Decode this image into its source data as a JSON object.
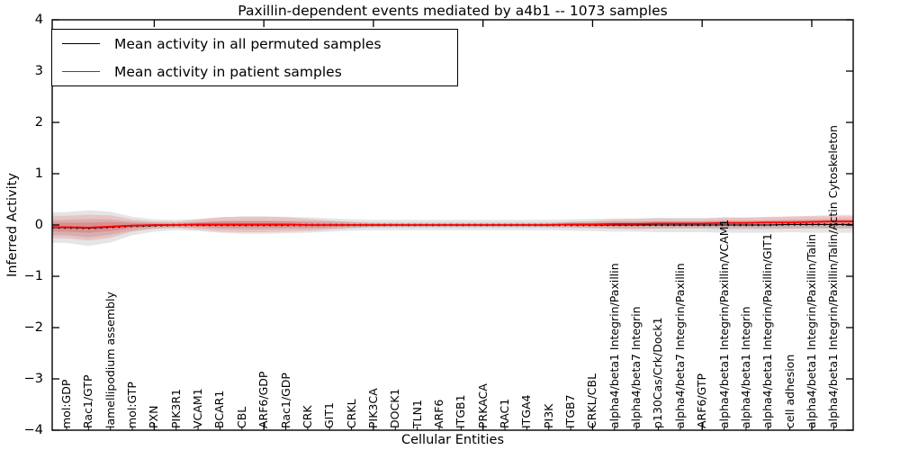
{
  "figure": {
    "background": "#ffffff",
    "accent_black": "#000000",
    "accent_red": "#ff0000"
  },
  "chart_data": {
    "type": "line",
    "title": "Paxillin-dependent events mediated by a4b1 -- 1073 samples",
    "xlabel": "Cellular Entities",
    "ylabel": "Inferred Activity",
    "ylim": [
      -4,
      4
    ],
    "grid": false,
    "legend_position": "upper left",
    "yticks": [
      -4,
      -3,
      -2,
      -1,
      0,
      1,
      2,
      3,
      4
    ],
    "ytick_labels": [
      "−4",
      "−3",
      "−2",
      "−1",
      "0",
      "1",
      "2",
      "3",
      "4"
    ],
    "x_major_tick_indices": [
      4,
      9,
      14,
      19,
      24,
      29,
      34
    ],
    "categories": [
      "mol:GDP",
      "Rac1/GTP",
      "lamellipodium assembly",
      "mol:GTP",
      "PXN",
      "PIK3R1",
      "VCAM1",
      "BCAR1",
      "CBL",
      "ARF6/GDP",
      "Rac1/GDP",
      "CRK",
      "GIT1",
      "CRKL",
      "PIK3CA",
      "DOCK1",
      "TLN1",
      "ARF6",
      "ITGB1",
      "PRKACA",
      "RAC1",
      "ITGA4",
      "PI3K",
      "ITGB7",
      "CRKL/CBL",
      "alpha4/beta1 Integrin/Paxillin",
      "alpha4/beta7 Integrin",
      "p130Cas/Crk/Dock1",
      "alpha4/beta7 Integrin/Paxillin",
      "ARF6/GTP",
      "alpha4/beta1 Integrin/Paxillin/VCAM1",
      "alpha4/beta1 Integrin",
      "alpha4/beta1 Integrin/Paxillin/GIT1",
      "cell adhesion",
      "alpha4/beta1 Integrin/Paxillin/Talin",
      "alpha4/beta1 Integrin/Paxillin/Talin/Actin Cytoskeleton"
    ],
    "series": [
      {
        "name": "Mean activity in all permuted samples",
        "color": "#000000",
        "line_style": "solid-with-dotted-markers",
        "values": [
          -0.05,
          -0.06,
          -0.04,
          -0.02,
          -0.01,
          0,
          0,
          0,
          0,
          0,
          0,
          0,
          0,
          0,
          0,
          0,
          0,
          0,
          0,
          0,
          0,
          0,
          0,
          0,
          0,
          0,
          0,
          0,
          0,
          0,
          0,
          0,
          0,
          0.01,
          0.01,
          0.01
        ]
      },
      {
        "name": "Mean activity in patient samples",
        "color": "#ff0000",
        "line_style": "solid",
        "values": [
          -0.04,
          -0.05,
          -0.03,
          -0.01,
          0,
          0,
          0.01,
          0.01,
          0.01,
          0.01,
          0.01,
          0,
          0,
          0,
          0,
          0,
          0,
          0,
          0,
          0,
          0,
          0,
          0,
          0.01,
          0.01,
          0.02,
          0.02,
          0.03,
          0.03,
          0.03,
          0.04,
          0.04,
          0.05,
          0.05,
          0.06,
          0.07
        ]
      }
    ],
    "bands": [
      {
        "name": "permuted-spread-outer",
        "series": 0,
        "color": "#000000",
        "opacity": 0.1,
        "half_width": [
          0.3,
          0.35,
          0.3,
          0.18,
          0.12,
          0.1,
          0.12,
          0.15,
          0.17,
          0.17,
          0.16,
          0.15,
          0.13,
          0.11,
          0.1,
          0.1,
          0.1,
          0.1,
          0.1,
          0.1,
          0.1,
          0.1,
          0.1,
          0.11,
          0.12,
          0.13,
          0.13,
          0.14,
          0.14,
          0.14,
          0.15,
          0.15,
          0.15,
          0.15,
          0.16,
          0.16
        ]
      },
      {
        "name": "permuted-spread-inner",
        "series": 0,
        "color": "#000000",
        "opacity": 0.1,
        "half_width": [
          0.15,
          0.18,
          0.15,
          0.09,
          0.06,
          0.05,
          0.06,
          0.08,
          0.09,
          0.09,
          0.08,
          0.08,
          0.07,
          0.06,
          0.05,
          0.05,
          0.05,
          0.05,
          0.05,
          0.05,
          0.05,
          0.05,
          0.05,
          0.06,
          0.06,
          0.07,
          0.07,
          0.07,
          0.07,
          0.07,
          0.08,
          0.08,
          0.08,
          0.08,
          0.08,
          0.08
        ]
      },
      {
        "name": "patient-spread-outer",
        "series": 1,
        "color": "#ff0000",
        "opacity": 0.14,
        "half_width": [
          0.22,
          0.25,
          0.22,
          0.12,
          0.07,
          0.06,
          0.1,
          0.14,
          0.15,
          0.15,
          0.14,
          0.12,
          0.09,
          0.06,
          0.04,
          0.03,
          0.03,
          0.03,
          0.03,
          0.03,
          0.03,
          0.03,
          0.04,
          0.05,
          0.07,
          0.09,
          0.1,
          0.1,
          0.09,
          0.09,
          0.1,
          0.1,
          0.11,
          0.12,
          0.12,
          0.13
        ]
      },
      {
        "name": "patient-spread-inner",
        "series": 1,
        "color": "#ff0000",
        "opacity": 0.18,
        "half_width": [
          0.09,
          0.1,
          0.09,
          0.05,
          0.03,
          0.02,
          0.04,
          0.06,
          0.06,
          0.06,
          0.06,
          0.05,
          0.04,
          0.02,
          0.02,
          0.01,
          0.01,
          0.01,
          0.01,
          0.01,
          0.01,
          0.01,
          0.02,
          0.02,
          0.03,
          0.04,
          0.04,
          0.04,
          0.04,
          0.04,
          0.04,
          0.04,
          0.04,
          0.05,
          0.05,
          0.05
        ]
      }
    ]
  }
}
